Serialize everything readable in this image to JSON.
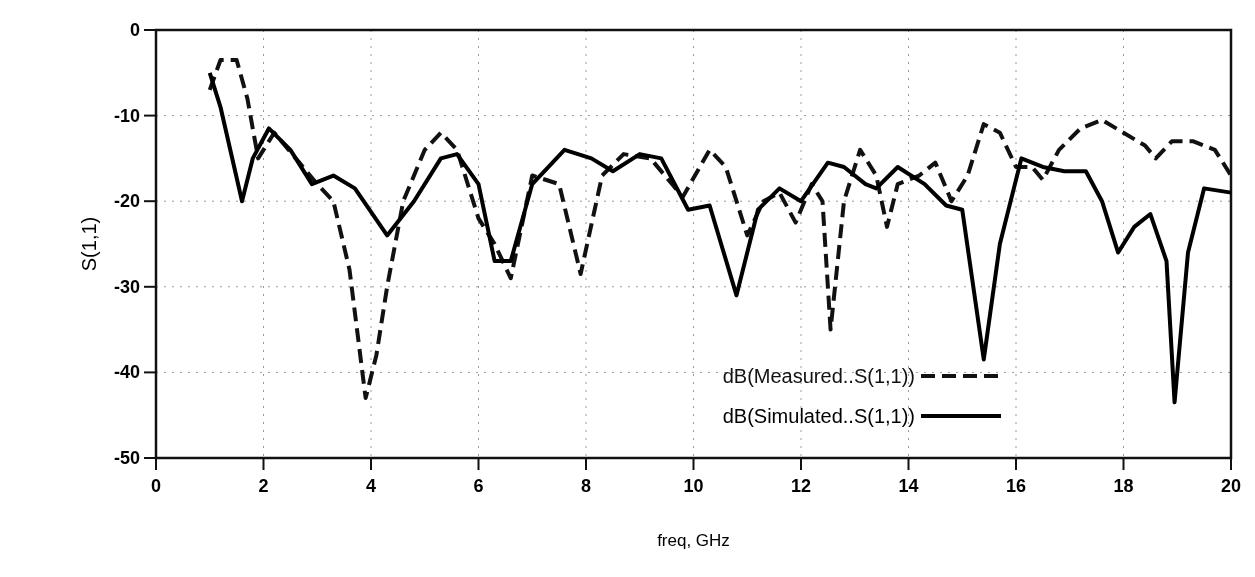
{
  "chart_data": {
    "type": "line",
    "xlabel": "freq, GHz",
    "ylabel": "S(1,1)",
    "xlim": [
      0,
      20
    ],
    "ylim": [
      -50,
      0
    ],
    "xticks": [
      0,
      2,
      4,
      6,
      8,
      10,
      12,
      14,
      16,
      18,
      20
    ],
    "yticks": [
      -50,
      -40,
      -30,
      -20,
      -10,
      0
    ],
    "grid": true,
    "legend": "bottom right",
    "series": [
      {
        "name": "dB(Measured..S(1,1))",
        "color": "#111111",
        "line_style": "dashed",
        "x": [
          1.0,
          1.2,
          1.5,
          1.7,
          1.9,
          2.2,
          2.6,
          3.0,
          3.3,
          3.6,
          3.9,
          4.1,
          4.3,
          4.6,
          5.0,
          5.3,
          5.6,
          6.0,
          6.3,
          6.6,
          7.0,
          7.5,
          7.9,
          8.3,
          8.7,
          9.2,
          9.6,
          9.8,
          10.3,
          10.6,
          11.0,
          11.3,
          11.6,
          11.9,
          12.2,
          12.4,
          12.55,
          12.8,
          13.1,
          13.4,
          13.6,
          13.8,
          14.2,
          14.5,
          14.8,
          15.1,
          15.4,
          15.7,
          16.0,
          16.3,
          16.5,
          16.8,
          17.2,
          17.6,
          18.0,
          18.4,
          18.6,
          18.9,
          19.3,
          19.7,
          20.0
        ],
        "values": [
          -7,
          -3.5,
          -3.5,
          -8,
          -15,
          -12,
          -15,
          -18,
          -20,
          -28,
          -43,
          -38,
          -30,
          -20,
          -14,
          -12,
          -14,
          -22,
          -25,
          -29,
          -17,
          -18,
          -28.5,
          -17,
          -14.5,
          -15,
          -18,
          -19.5,
          -14,
          -16,
          -24,
          -20,
          -19,
          -22.5,
          -18,
          -20,
          -35,
          -20,
          -14,
          -17,
          -23,
          -18,
          -17,
          -15.5,
          -20,
          -17,
          -11,
          -12,
          -16,
          -16,
          -17.5,
          -14,
          -11.5,
          -10.5,
          -12,
          -13.5,
          -15,
          -13,
          -13,
          -14,
          -17
        ]
      },
      {
        "name": "dB(Simulated..S(1,1))",
        "color": "#000000",
        "line_style": "solid",
        "x": [
          1.0,
          1.2,
          1.6,
          1.8,
          2.1,
          2.5,
          2.9,
          3.3,
          3.7,
          4.3,
          4.8,
          5.3,
          5.6,
          6.0,
          6.3,
          6.6,
          7.0,
          7.6,
          8.1,
          8.5,
          9.0,
          9.4,
          9.9,
          10.3,
          10.8,
          11.2,
          11.6,
          12.0,
          12.5,
          12.8,
          13.2,
          13.4,
          13.8,
          14.3,
          14.7,
          15.0,
          15.4,
          15.7,
          16.1,
          16.5,
          16.9,
          17.3,
          17.6,
          17.9,
          18.2,
          18.5,
          18.8,
          18.95,
          19.2,
          19.5,
          20.0
        ],
        "values": [
          -5,
          -9,
          -20,
          -15,
          -11.5,
          -14,
          -18,
          -17,
          -18.5,
          -24,
          -20,
          -15,
          -14.5,
          -18,
          -27,
          -27,
          -18,
          -14,
          -15,
          -16.5,
          -14.5,
          -15,
          -21,
          -20.5,
          -31,
          -21,
          -18.5,
          -20,
          -15.5,
          -16,
          -18,
          -18.5,
          -16,
          -18,
          -20.5,
          -21,
          -38.5,
          -25,
          -15,
          -16,
          -16.5,
          -16.5,
          -20,
          -26,
          -23,
          -21.5,
          -27,
          -43.5,
          -26,
          -18.5,
          -19
        ]
      }
    ]
  }
}
